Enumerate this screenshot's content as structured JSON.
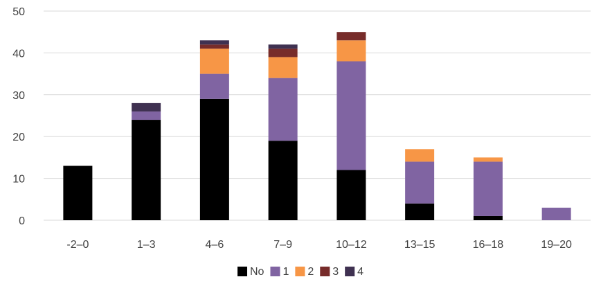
{
  "chart_data": {
    "type": "bar",
    "stacked": true,
    "title": "",
    "xlabel": "",
    "ylabel": "",
    "ylim": [
      0,
      50
    ],
    "yticks": [
      0,
      10,
      20,
      30,
      40,
      50
    ],
    "grid": true,
    "legend_position": "bottom",
    "categories": [
      "-2–0",
      "1–3",
      "4–6",
      "7–9",
      "10–12",
      "13–15",
      "16–18",
      "19–20"
    ],
    "series": [
      {
        "name": "No",
        "color": "#000000",
        "values": [
          13,
          24,
          29,
          19,
          12,
          4,
          1,
          0
        ]
      },
      {
        "name": "1",
        "color": "#8064A2",
        "values": [
          0,
          2,
          6,
          15,
          26,
          10,
          13,
          3
        ]
      },
      {
        "name": "2",
        "color": "#F79646",
        "values": [
          0,
          0,
          6,
          5,
          5,
          3,
          1,
          0
        ]
      },
      {
        "name": "3",
        "color": "#772C2A",
        "values": [
          0,
          0,
          1,
          2,
          2,
          0,
          0,
          0
        ]
      },
      {
        "name": "4",
        "color": "#3F3151",
        "values": [
          0,
          2,
          1,
          1,
          0,
          0,
          0,
          0
        ]
      }
    ]
  }
}
